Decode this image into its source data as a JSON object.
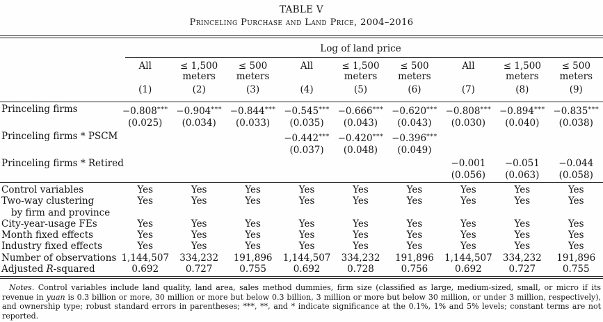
{
  "page": {
    "background": "#fefefe",
    "text_color": "#151515",
    "rule_color": "#2a2a2a"
  },
  "title": "TABLE V",
  "subtitle": "Princeling Purchase and Land Price, 2004–2016",
  "table": {
    "spanner": "Log of land price",
    "columns": [
      {
        "top": "All",
        "sub": "",
        "num": "(1)"
      },
      {
        "top": "≤ 1,500",
        "sub": "meters",
        "num": "(2)"
      },
      {
        "top": "≤ 500",
        "sub": "meters",
        "num": "(3)"
      },
      {
        "top": "All",
        "sub": "",
        "num": "(4)"
      },
      {
        "top": "≤ 1,500",
        "sub": "meters",
        "num": "(5)"
      },
      {
        "top": "≤ 500",
        "sub": "meters",
        "num": "(6)"
      },
      {
        "top": "All",
        "sub": "",
        "num": "(7)"
      },
      {
        "top": "≤ 1,500",
        "sub": "meters",
        "num": "(8)"
      },
      {
        "top": "≤ 500",
        "sub": "meters",
        "num": "(9)"
      }
    ],
    "coefficient_rows": [
      {
        "label": "Princeling firms",
        "cells": [
          {
            "b": "−0.808",
            "stars": "***",
            "se": "(0.025)"
          },
          {
            "b": "−0.904",
            "stars": "***",
            "se": "(0.034)"
          },
          {
            "b": "−0.844",
            "stars": "***",
            "se": "(0.033)"
          },
          {
            "b": "−0.545",
            "stars": "***",
            "se": "(0.035)"
          },
          {
            "b": "−0.666",
            "stars": "***",
            "se": "(0.043)"
          },
          {
            "b": "−0.620",
            "stars": "***",
            "se": "(0.043)"
          },
          {
            "b": "−0.808",
            "stars": "***",
            "se": "(0.030)"
          },
          {
            "b": "−0.894",
            "stars": "***",
            "se": "(0.040)"
          },
          {
            "b": "−0.835",
            "stars": "***",
            "se": "(0.038)"
          }
        ]
      },
      {
        "label": "Princeling firms * PSCM",
        "cells": [
          null,
          null,
          null,
          {
            "b": "−0.442",
            "stars": "***",
            "se": "(0.037)"
          },
          {
            "b": "−0.420",
            "stars": "***",
            "se": "(0.048)"
          },
          {
            "b": "−0.396",
            "stars": "***",
            "se": "(0.049)"
          },
          null,
          null,
          null
        ]
      },
      {
        "label": "Princeling firms * Retired",
        "cells": [
          null,
          null,
          null,
          null,
          null,
          null,
          {
            "b": "−0.001",
            "stars": "",
            "se": "(0.056)"
          },
          {
            "b": "−0.051",
            "stars": "",
            "se": "(0.063)"
          },
          {
            "b": "−0.044",
            "stars": "",
            "se": "(0.058)"
          }
        ]
      }
    ],
    "bottom_rows": [
      {
        "label_segments": [
          [
            "Control variables",
            false
          ]
        ],
        "values": [
          "Yes",
          "Yes",
          "Yes",
          "Yes",
          "Yes",
          "Yes",
          "Yes",
          "Yes",
          "Yes"
        ]
      },
      {
        "label_segments": [
          [
            "Two-way clustering",
            false
          ]
        ],
        "label_line2": "by firm and province",
        "values": [
          "Yes",
          "Yes",
          "Yes",
          "Yes",
          "Yes",
          "Yes",
          "Yes",
          "Yes",
          "Yes"
        ]
      },
      {
        "label_segments": [
          [
            "City-year-usage FEs",
            false
          ]
        ],
        "values": [
          "Yes",
          "Yes",
          "Yes",
          "Yes",
          "Yes",
          "Yes",
          "Yes",
          "Yes",
          "Yes"
        ]
      },
      {
        "label_segments": [
          [
            "Month fixed effects",
            false
          ]
        ],
        "values": [
          "Yes",
          "Yes",
          "Yes",
          "Yes",
          "Yes",
          "Yes",
          "Yes",
          "Yes",
          "Yes"
        ]
      },
      {
        "label_segments": [
          [
            "Industry fixed effects",
            false
          ]
        ],
        "values": [
          "Yes",
          "Yes",
          "Yes",
          "Yes",
          "Yes",
          "Yes",
          "Yes",
          "Yes",
          "Yes"
        ]
      },
      {
        "label_segments": [
          [
            "Number of observations",
            false
          ]
        ],
        "values": [
          "1,144,507",
          "334,232",
          "191,896",
          "1,144,507",
          "334,232",
          "191,896",
          "1,144,507",
          "334,232",
          "191,896"
        ]
      },
      {
        "label_segments": [
          [
            "Adjusted ",
            false
          ],
          [
            "R",
            true
          ],
          [
            "-squared",
            false
          ]
        ],
        "values": [
          "0.692",
          "0.727",
          "0.755",
          "0.692",
          "0.728",
          "0.756",
          "0.692",
          "0.727",
          "0.755"
        ]
      }
    ]
  },
  "notes": {
    "segments": [
      [
        "Notes.",
        true
      ],
      [
        " Control variables include land quality, land area, sales method dummies, firm size (classified as large, medium-sized, small, or micro if its revenue in ",
        false
      ],
      [
        "yuan",
        true
      ],
      [
        " is 0.3 billion or more, 30 million or more but below 0.3 billion, 3 million or more but below 30 million, or under 3 million, respectively), and ownership type; robust standard errors in parentheses; ***, **, and * indicate significance at the 0.1%, 1% and 5% levels; constant terms are not reported.",
        false
      ]
    ]
  }
}
